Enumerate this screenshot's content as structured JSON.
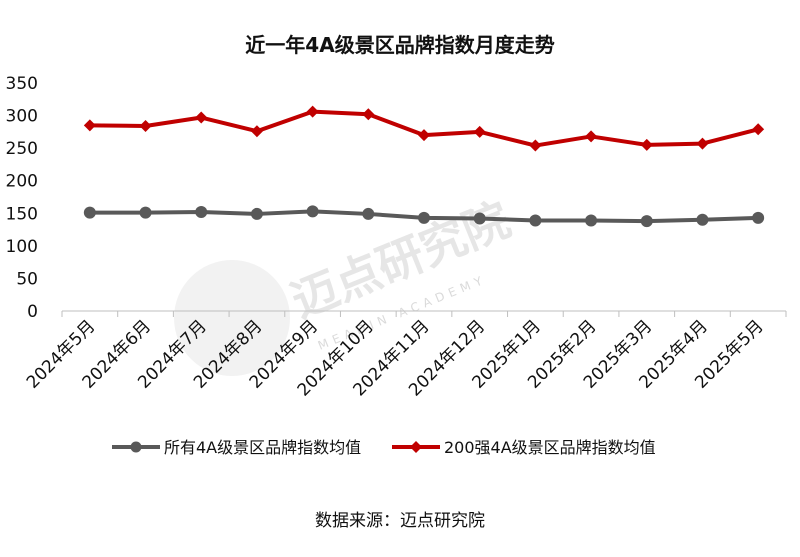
{
  "chart_data": {
    "type": "line",
    "title": "近一年4A级景区品牌指数月度走势",
    "categories": [
      "2024年5月",
      "2024年6月",
      "2024年7月",
      "2024年8月",
      "2024年9月",
      "2024年10月",
      "2024年11月",
      "2024年12月",
      "2025年1月",
      "2025年2月",
      "2025年3月",
      "2025年4月",
      "2025年5月"
    ],
    "series": [
      {
        "name": "所有4A级景区品牌指数均值",
        "color": "#595959",
        "marker": "circle",
        "values": [
          151,
          151,
          152,
          149,
          153,
          149,
          143,
          142,
          139,
          139,
          138,
          140,
          143
        ]
      },
      {
        "name": "200强4A级景区品牌指数均值",
        "color": "#c00000",
        "marker": "diamond",
        "values": [
          285,
          284,
          297,
          276,
          306,
          302,
          270,
          275,
          254,
          268,
          255,
          257,
          279
        ]
      }
    ],
    "ylim": [
      0,
      350
    ],
    "yticks": [
      0,
      50,
      100,
      150,
      200,
      250,
      300,
      350
    ],
    "grid": false,
    "legend": "bottom"
  },
  "source": "数据来源：迈点研究院",
  "watermark": {
    "text": "迈点研究院",
    "sub": "MEADIN ACADEMY"
  }
}
